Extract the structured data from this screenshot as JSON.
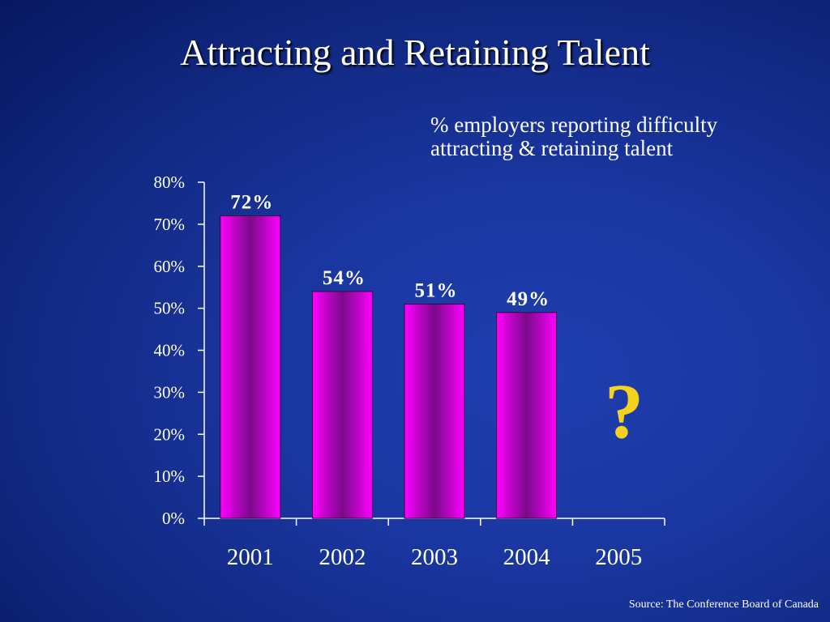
{
  "slide": {
    "title": "Attracting and Retaining Talent",
    "caption_line1": "% employers reporting difficulty",
    "caption_line2": "attracting & retaining talent",
    "source": "Source:  The Conference Board of Canada",
    "annotation": "?"
  },
  "colors": {
    "background": "#1a36a0",
    "bar_edge": "#ff00ff",
    "bar_center": "#7a0a8a",
    "annotation": "#f5d21e"
  },
  "chart_data": {
    "type": "bar",
    "title": "",
    "xlabel": "",
    "ylabel": "",
    "categories": [
      "2001",
      "2002",
      "2003",
      "2004",
      "2005"
    ],
    "values": [
      72,
      54,
      51,
      49,
      null
    ],
    "data_labels": [
      "72%",
      "54%",
      "51%",
      "49%",
      ""
    ],
    "ylim": [
      0,
      80
    ],
    "y_ticks": [
      0,
      10,
      20,
      30,
      40,
      50,
      60,
      70,
      80
    ],
    "y_tick_labels": [
      "0%",
      "10%",
      "20%",
      "30%",
      "40%",
      "50%",
      "60%",
      "70%",
      "80%"
    ],
    "grid": false,
    "legend": "none"
  }
}
